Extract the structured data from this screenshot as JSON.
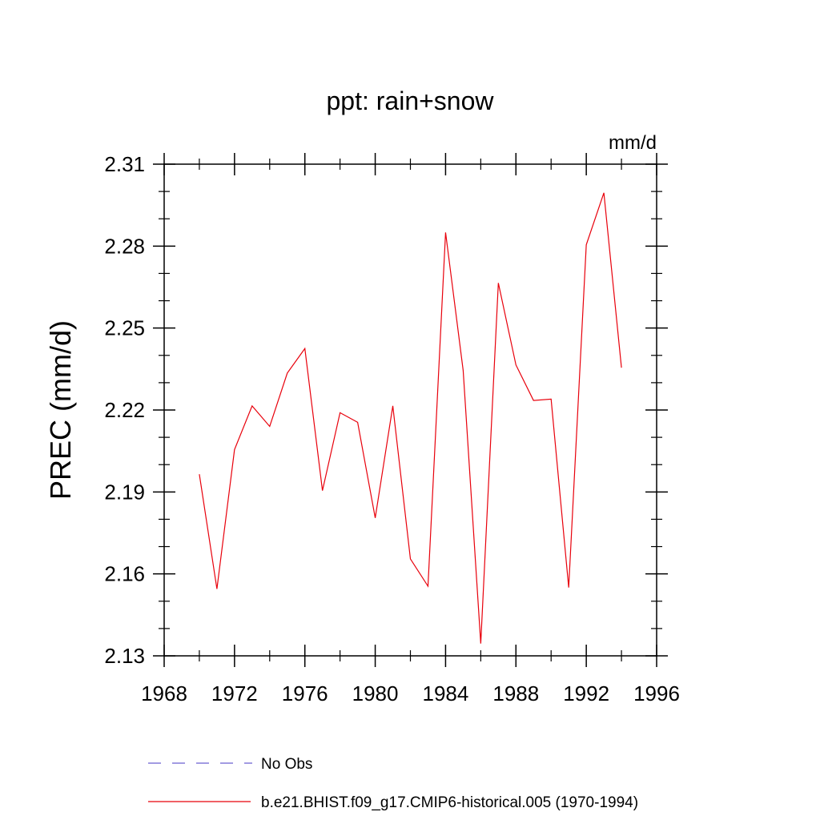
{
  "chart_data": {
    "type": "line",
    "title": "ppt: rain+snow",
    "units_label": "mm/d",
    "ylabel": "PREC  (mm/d)",
    "xlabel": "",
    "xlim": [
      1968,
      1996
    ],
    "ylim": [
      2.13,
      2.31
    ],
    "x_ticks": [
      1968,
      1972,
      1976,
      1980,
      1984,
      1988,
      1992,
      1996
    ],
    "y_ticks": [
      2.13,
      2.16,
      2.19,
      2.22,
      2.25,
      2.28,
      2.31
    ],
    "x_tick_labels": [
      "1968",
      "1972",
      "1976",
      "1980",
      "1984",
      "1988",
      "1992",
      "1996"
    ],
    "y_tick_labels": [
      "2.13",
      "2.16",
      "2.19",
      "2.22",
      "2.25",
      "2.28",
      "2.31"
    ],
    "x": [
      1970,
      1971,
      1972,
      1973,
      1974,
      1975,
      1976,
      1977,
      1978,
      1979,
      1980,
      1981,
      1982,
      1983,
      1984,
      1985,
      1986,
      1987,
      1988,
      1989,
      1990,
      1991,
      1992,
      1993,
      1994
    ],
    "series": [
      {
        "name": "b.e21.BHIST.f09_g17.CMIP6-historical.005 (1970-1994)",
        "color": "#e8000b",
        "values": [
          2.1965,
          2.1545,
          2.2055,
          2.2215,
          2.214,
          2.2335,
          2.2425,
          2.1905,
          2.219,
          2.2155,
          2.1805,
          2.2215,
          2.1655,
          2.1555,
          2.285,
          2.2345,
          2.1345,
          2.2665,
          2.2365,
          2.2235,
          2.224,
          2.155,
          2.2805,
          2.2995,
          2.2355
        ]
      }
    ],
    "legend": {
      "placement": "bottom",
      "entries": [
        {
          "label": "No Obs",
          "style": "dashed",
          "color": "#6a5fd0"
        },
        {
          "label": "b.e21.BHIST.f09_g17.CMIP6-historical.005 (1970-1994)",
          "style": "solid",
          "color": "#e8000b"
        }
      ]
    }
  }
}
